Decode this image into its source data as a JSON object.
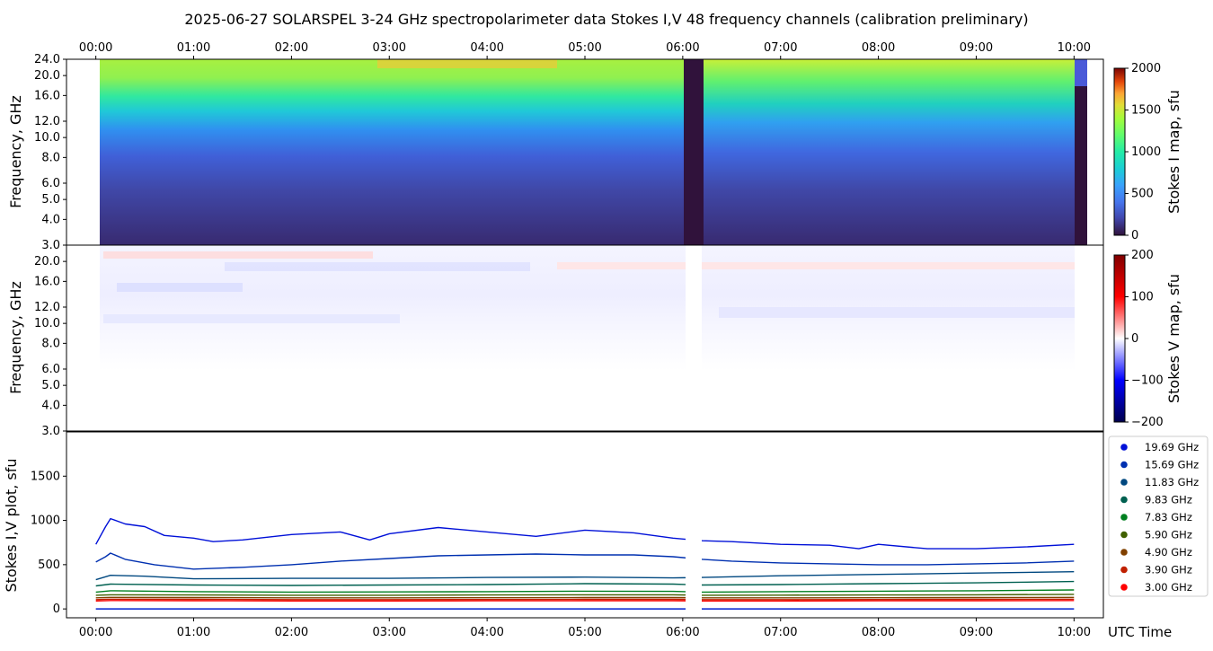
{
  "title": "2025-06-27  SOLARSPEL  3-24 GHz spectropolarimeter data   Stokes I,V   48 frequency channels   (calibration preliminary)",
  "x_axis_label": "UTC Time",
  "time_ticks": [
    "00:00",
    "01:00",
    "02:00",
    "03:00",
    "04:00",
    "05:00",
    "06:00",
    "07:00",
    "08:00",
    "09:00",
    "10:00"
  ],
  "panels": {
    "stokes_i_map": {
      "ylabel": "Frequency, GHz",
      "yticks": [
        "3.0",
        "4.0",
        "5.0",
        "6.0",
        "8.0",
        "10.0",
        "12.0",
        "16.0",
        "20.0",
        "24.0"
      ],
      "colorbar_label": "Stokes I map, sfu",
      "colorbar_ticks": [
        "0",
        "500",
        "1000",
        "1500",
        "2000"
      ]
    },
    "stokes_v_map": {
      "ylabel": "Frequency, GHz",
      "yticks": [
        "3.0",
        "4.0",
        "5.0",
        "6.0",
        "8.0",
        "10.0",
        "12.0",
        "16.0",
        "20.0"
      ],
      "colorbar_label": "Stokes V map, sfu",
      "colorbar_ticks": [
        "−200",
        "−100",
        "0",
        "100",
        "200"
      ]
    },
    "stokes_plot": {
      "ylabel": "Stokes I,V plot, sfu",
      "yticks": [
        "0",
        "500",
        "1000",
        "1500"
      ]
    }
  },
  "legend": [
    {
      "label": "19.69 GHz",
      "color": "#0010d8"
    },
    {
      "label": "15.69 GHz",
      "color": "#0030b0"
    },
    {
      "label": "11.83 GHz",
      "color": "#004880"
    },
    {
      "label": "9.83 GHz",
      "color": "#006050"
    },
    {
      "label": "7.83 GHz",
      "color": "#008020"
    },
    {
      "label": "5.90 GHz",
      "color": "#406000"
    },
    {
      "label": "4.90 GHz",
      "color": "#804000"
    },
    {
      "label": "3.90 GHz",
      "color": "#c02000"
    },
    {
      "label": "3.00 GHz",
      "color": "#ff0000"
    }
  ],
  "chart_data": {
    "type": "line",
    "x_unit": "hours UTC",
    "xlim": [
      -0.3,
      10.3
    ],
    "ylim": [
      -100,
      2000
    ],
    "data_gap": [
      6.0,
      6.2
    ],
    "i_map_frequency_range_ghz": [
      3.0,
      24.0
    ],
    "i_map_colorbar_range": [
      0,
      2000
    ],
    "v_map_colorbar_range": [
      -200,
      200
    ],
    "series": [
      {
        "name": "19.69 GHz",
        "x": [
          0,
          0.1,
          0.15,
          0.3,
          0.5,
          0.7,
          0.9,
          1.0,
          1.2,
          1.5,
          2.0,
          2.5,
          2.8,
          3.0,
          3.5,
          4.0,
          4.5,
          5.0,
          5.5,
          5.9,
          6.2,
          6.5,
          7.0,
          7.5,
          7.8,
          8.0,
          8.5,
          9.0,
          9.5,
          10.0
        ],
        "values": [
          730,
          930,
          1020,
          960,
          930,
          830,
          810,
          800,
          760,
          780,
          840,
          870,
          780,
          850,
          920,
          870,
          820,
          890,
          860,
          800,
          770,
          760,
          730,
          720,
          680,
          730,
          680,
          680,
          700,
          730
        ]
      },
      {
        "name": "15.69 GHz",
        "x": [
          0,
          0.1,
          0.15,
          0.3,
          0.6,
          1.0,
          1.5,
          2.0,
          2.5,
          3.0,
          3.5,
          4.0,
          4.5,
          5.0,
          5.5,
          5.9,
          6.2,
          6.5,
          7.0,
          7.5,
          8.0,
          8.5,
          9.0,
          9.5,
          10.0
        ],
        "values": [
          530,
          590,
          630,
          560,
          500,
          450,
          470,
          500,
          540,
          570,
          600,
          610,
          620,
          610,
          610,
          590,
          560,
          540,
          520,
          510,
          500,
          500,
          510,
          520,
          540
        ]
      },
      {
        "name": "11.83 GHz",
        "x": [
          0,
          0.15,
          0.5,
          1.0,
          2.0,
          3.0,
          4.0,
          5.0,
          5.9,
          6.2,
          7.0,
          8.0,
          9.0,
          10.0
        ],
        "values": [
          330,
          380,
          370,
          340,
          345,
          345,
          355,
          360,
          350,
          355,
          375,
          390,
          405,
          420
        ]
      },
      {
        "name": "9.83 GHz",
        "x": [
          0,
          0.15,
          1.0,
          2.0,
          3.0,
          4.0,
          5.0,
          5.9,
          6.2,
          7.0,
          8.0,
          9.0,
          10.0
        ],
        "values": [
          260,
          280,
          270,
          265,
          270,
          275,
          285,
          280,
          270,
          275,
          285,
          295,
          310
        ]
      },
      {
        "name": "7.83 GHz",
        "x": [
          0,
          0.15,
          1.0,
          2.0,
          3.0,
          4.0,
          5.0,
          5.9,
          6.2,
          7.0,
          8.0,
          9.0,
          10.0
        ],
        "values": [
          190,
          205,
          195,
          190,
          192,
          195,
          200,
          198,
          190,
          195,
          200,
          205,
          215
        ]
      },
      {
        "name": "5.90 GHz",
        "x": [
          0,
          0.15,
          1.0,
          2.0,
          3.0,
          4.0,
          5.0,
          5.9,
          6.2,
          7.0,
          8.0,
          9.0,
          10.0
        ],
        "values": [
          155,
          160,
          158,
          155,
          155,
          158,
          160,
          160,
          155,
          156,
          158,
          160,
          165
        ]
      },
      {
        "name": "4.90 GHz",
        "x": [
          0,
          0.15,
          1.0,
          2.0,
          3.0,
          4.0,
          5.0,
          5.9,
          6.2,
          7.0,
          8.0,
          9.0,
          10.0
        ],
        "values": [
          125,
          130,
          128,
          125,
          125,
          126,
          128,
          128,
          125,
          125,
          126,
          128,
          130
        ]
      },
      {
        "name": "3.90 GHz",
        "x": [
          0,
          0.15,
          1.0,
          2.0,
          3.0,
          4.0,
          5.0,
          5.9,
          6.2,
          7.0,
          8.0,
          9.0,
          10.0
        ],
        "values": [
          105,
          110,
          108,
          105,
          105,
          106,
          108,
          108,
          105,
          105,
          106,
          108,
          110
        ]
      },
      {
        "name": "3.00 GHz",
        "x": [
          0,
          0.15,
          1.0,
          2.0,
          3.0,
          4.0,
          5.0,
          5.9,
          6.2,
          7.0,
          8.0,
          9.0,
          10.0
        ],
        "values": [
          90,
          95,
          93,
          90,
          90,
          92,
          93,
          93,
          90,
          90,
          92,
          93,
          95
        ]
      }
    ]
  }
}
